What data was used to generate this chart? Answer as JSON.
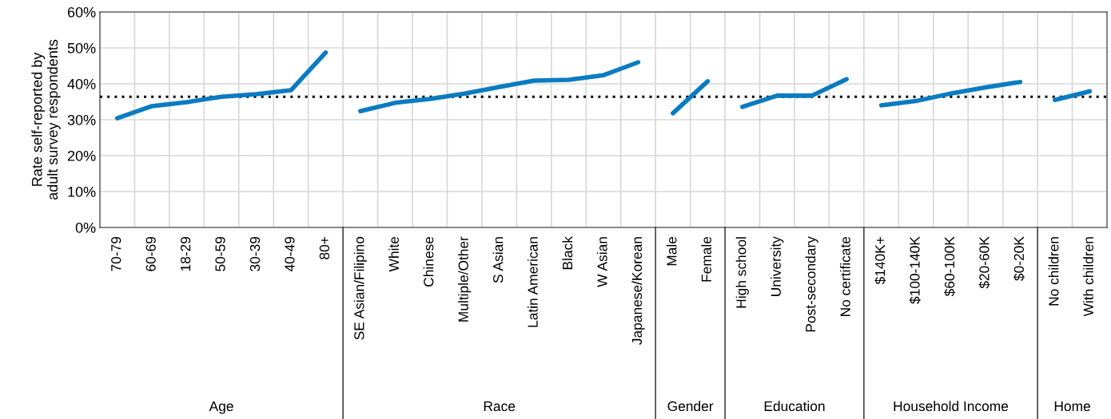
{
  "chart_data": {
    "type": "line",
    "ylabel": "Rate self-reported by\nadult survey respondents",
    "categories": [
      "70-79",
      "60-69",
      "18-29",
      "50-59",
      "30-39",
      "40-49",
      "80+",
      null,
      "SE Asian/Filipino",
      "White",
      "Chinese",
      "Multiple/Other",
      "S Asian",
      "Latin American",
      "Black",
      "W Asian",
      "Japanese/Korean",
      null,
      "Male",
      "Female",
      null,
      "High school",
      "University",
      "Post-secondary",
      "No certificate",
      null,
      "$140K+",
      "$100-140K",
      "$60-100K",
      "$20-60K",
      "$0-20K",
      null,
      "No children",
      "With children"
    ],
    "series": [
      {
        "color": "#0a7bc1",
        "values": [
          30.4,
          33.8,
          34.9,
          36.4,
          37.1,
          38.2,
          48.7,
          null,
          32.4,
          34.7,
          35.8,
          37.3,
          39.1,
          40.9,
          41.1,
          42.4,
          46.0,
          null,
          31.8,
          40.7,
          null,
          33.6,
          36.7,
          36.7,
          41.3,
          null,
          34.0,
          35.2,
          37.3,
          39.0,
          40.5,
          null,
          35.5,
          37.9
        ]
      }
    ],
    "annotations": [
      "Age",
      "Race",
      "Gender",
      "Education",
      "Household Income",
      "Home"
    ],
    "ylim": [
      0,
      60
    ],
    "yticks": [
      {
        "value": 0,
        "label": "0%"
      },
      {
        "value": 10,
        "label": "10%"
      },
      {
        "value": 20,
        "label": "20%"
      },
      {
        "value": 30,
        "label": "30%"
      },
      {
        "value": 40,
        "label": "40%"
      },
      {
        "value": 50,
        "label": "50%"
      },
      {
        "value": 60,
        "label": "60%"
      }
    ],
    "ref_lines": [
      {
        "axis": "y",
        "value": 36.4,
        "color": "#000000",
        "line_style": "dotted"
      }
    ],
    "grid": true,
    "marker": "none",
    "line_style": "solid"
  }
}
